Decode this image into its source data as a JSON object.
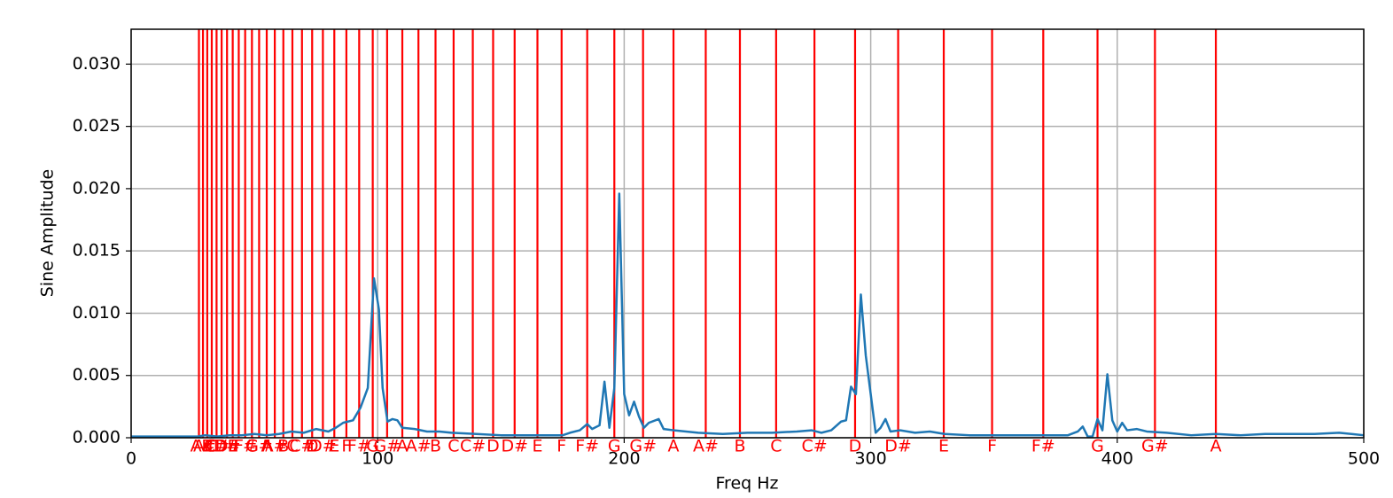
{
  "chart_data": {
    "type": "line",
    "xlabel": "Freq Hz",
    "ylabel": "Sine Amplitude",
    "xlim": [
      0,
      500
    ],
    "ylim": [
      0,
      0.0328
    ],
    "xticks": [
      0,
      100,
      200,
      300,
      400,
      500
    ],
    "yticks": [
      {
        "value": 0,
        "label": "0.000"
      },
      {
        "value": 0.005,
        "label": "0.005"
      },
      {
        "value": 0.01,
        "label": "0.010"
      },
      {
        "value": 0.015,
        "label": "0.015"
      },
      {
        "value": 0.02,
        "label": "0.020"
      },
      {
        "value": 0.025,
        "label": "0.025"
      },
      {
        "value": 0.03,
        "label": "0.030"
      }
    ],
    "grid": true,
    "series": [
      {
        "color": "#1f77b4",
        "x": [
          0,
          10,
          20,
          27,
          30,
          35,
          40,
          45,
          50,
          55,
          60,
          65,
          70,
          75,
          80,
          83,
          86,
          90,
          93,
          96,
          98.5,
          100.5,
          102,
          104,
          106,
          108,
          110,
          115,
          120,
          125,
          130,
          140,
          150,
          160,
          170,
          175,
          178,
          182,
          185,
          187,
          190,
          192,
          194,
          196,
          198,
          200,
          202,
          204,
          206,
          208,
          210,
          214,
          216,
          220,
          230,
          240,
          250,
          260,
          270,
          276,
          280,
          284,
          288,
          290,
          292,
          294,
          296,
          298,
          300,
          302,
          304,
          306,
          308,
          312,
          318,
          324,
          330,
          340,
          350,
          360,
          370,
          380,
          384,
          386,
          388,
          390,
          392,
          394,
          396,
          398,
          400,
          402,
          404,
          408,
          412,
          420,
          430,
          440,
          450,
          460,
          470,
          480,
          490,
          495,
          500
        ],
        "values": [
          0.0001,
          0.0001,
          0.0001,
          0.0001,
          0.0002,
          0.0001,
          0.0002,
          0.0002,
          0.0003,
          0.0002,
          0.0003,
          0.0005,
          0.0004,
          0.0007,
          0.0005,
          0.0008,
          0.0012,
          0.0014,
          0.0024,
          0.004,
          0.0128,
          0.0103,
          0.004,
          0.0013,
          0.0015,
          0.0014,
          0.0008,
          0.0007,
          0.0005,
          0.0005,
          0.0004,
          0.0003,
          0.0002,
          0.0002,
          0.0002,
          0.0002,
          0.0004,
          0.0006,
          0.0011,
          0.0007,
          0.001,
          0.0045,
          0.0008,
          0.004,
          0.0196,
          0.0035,
          0.0018,
          0.0029,
          0.0017,
          0.0008,
          0.0012,
          0.0015,
          0.0007,
          0.0006,
          0.0004,
          0.0003,
          0.0004,
          0.0004,
          0.0005,
          0.0006,
          0.0004,
          0.0006,
          0.0013,
          0.0014,
          0.0041,
          0.0035,
          0.0115,
          0.0066,
          0.0035,
          0.0004,
          0.0008,
          0.0015,
          0.0005,
          0.0006,
          0.0004,
          0.0005,
          0.0003,
          0.0002,
          0.0002,
          0.0002,
          0.0002,
          0.0002,
          0.0005,
          0.0009,
          0.0001,
          0.0001,
          0.0015,
          0.0006,
          0.0051,
          0.0014,
          0.0005,
          0.0012,
          0.0006,
          0.0007,
          0.0005,
          0.0004,
          0.0002,
          0.0003,
          0.0002,
          0.0003,
          0.0003,
          0.0003,
          0.0004,
          0.0003,
          0.0002
        ]
      }
    ],
    "note_color": "#ff0000",
    "notes": {
      "x": [
        27.5,
        29.14,
        30.87,
        32.7,
        34.65,
        36.71,
        38.89,
        41.2,
        43.65,
        46.25,
        49,
        51.91,
        55,
        58.27,
        61.74,
        65.41,
        69.3,
        73.42,
        77.78,
        82.41,
        87.31,
        92.5,
        98,
        103.83,
        110,
        116.54,
        123.47,
        130.81,
        138.59,
        146.83,
        155.56,
        164.81,
        174.61,
        185,
        196,
        207.65,
        220,
        233.08,
        246.94,
        261.63,
        277.18,
        293.66,
        311.13,
        329.63,
        349.23,
        369.99,
        392,
        415.3,
        440
      ],
      "labels": [
        "A",
        "A#",
        "B",
        "C",
        "C#",
        "D",
        "D#",
        "E",
        "F",
        "F#",
        "G",
        "G#",
        "A",
        "A#",
        "B",
        "C",
        "C#",
        "D",
        "D#",
        "E",
        "F",
        "F#",
        "G",
        "G#",
        "A",
        "A#",
        "B",
        "C",
        "C#",
        "D",
        "D#",
        "E",
        "F",
        "F#",
        "G",
        "G#",
        "A",
        "A#",
        "B",
        "C",
        "C#",
        "D",
        "D#",
        "E",
        "F",
        "F#",
        "G",
        "G#",
        "A"
      ]
    }
  }
}
